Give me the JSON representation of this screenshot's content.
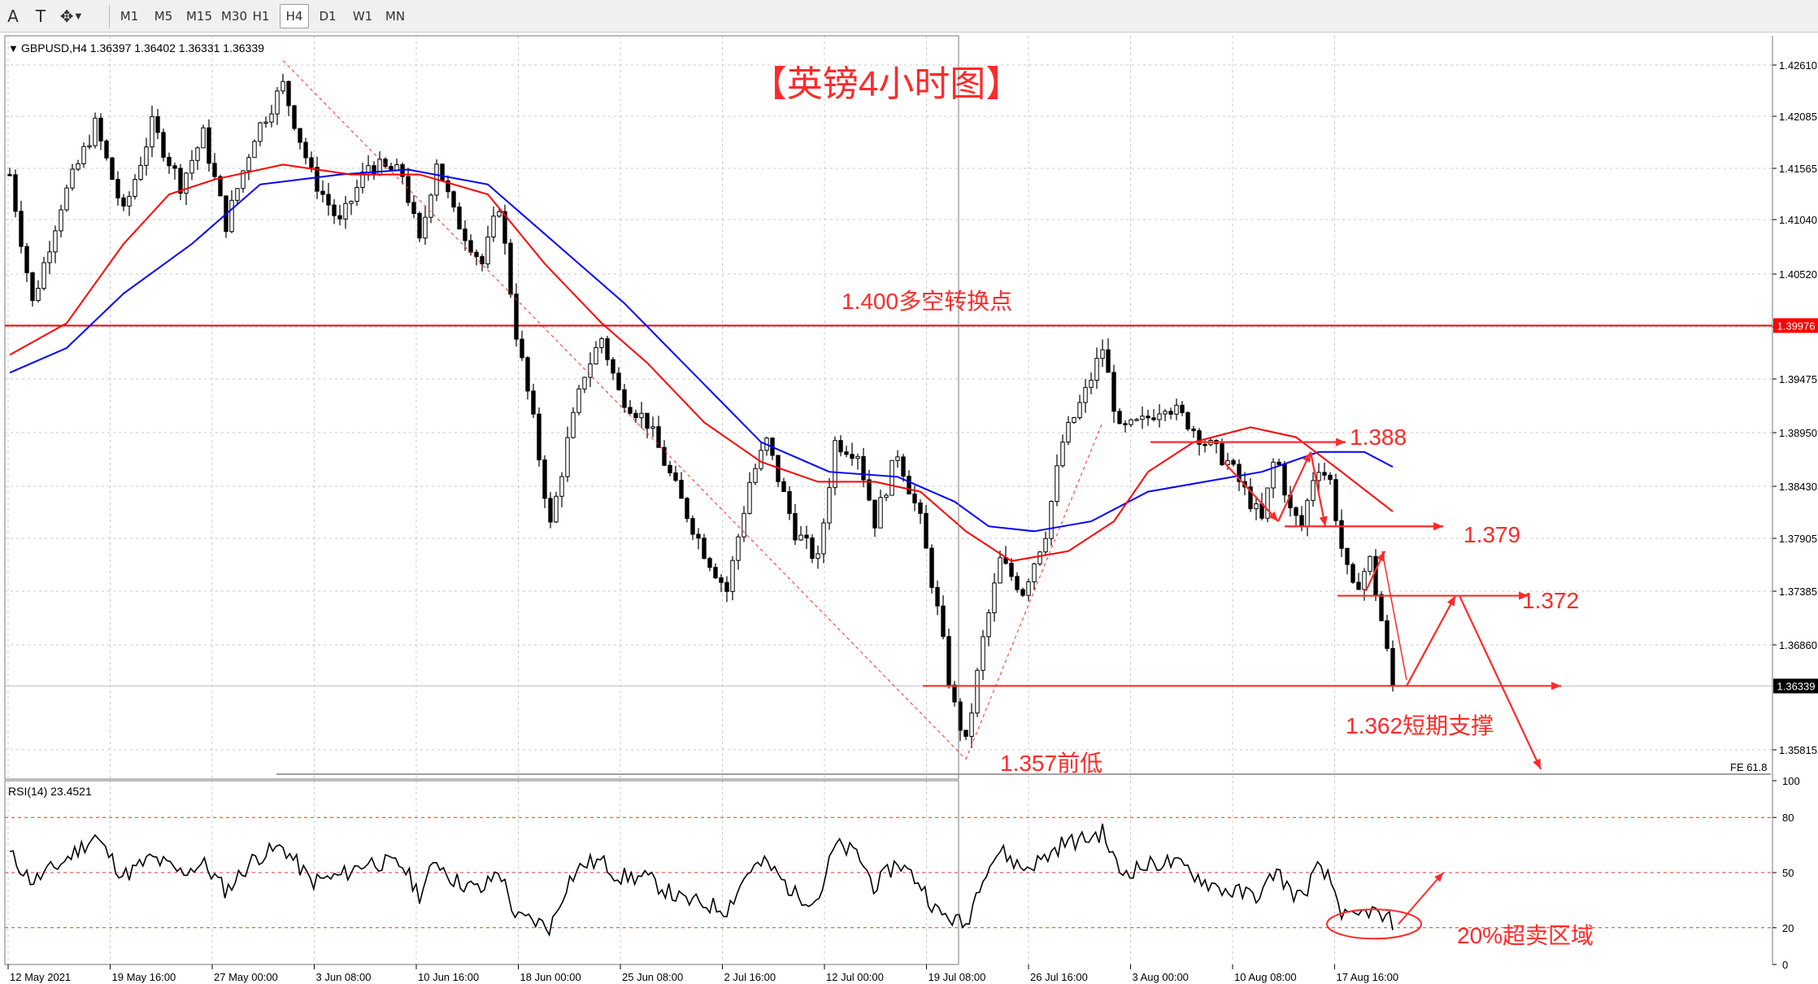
{
  "toolbar": {
    "tools": [
      {
        "name": "text-tool",
        "glyph": "A"
      },
      {
        "name": "text-label-tool",
        "glyph": "T"
      },
      {
        "name": "arrows-tool",
        "glyph": "✥"
      }
    ],
    "timeframes": [
      "M1",
      "M5",
      "M15",
      "M30",
      "H1",
      "H4",
      "D1",
      "W1",
      "MN"
    ],
    "active_timeframe": "H4"
  },
  "colors": {
    "candle": "#000000",
    "ma_fast": "#ff0000",
    "ma_slow": "#0000ff",
    "annotation": "#ff2a2a",
    "grid": "#c8c8c8",
    "rsi_level": "#e03030",
    "price_tag_current": "#000000",
    "price_tag_level": "#ff0000"
  },
  "main_chart": {
    "header": "GBPUSD,H4  1.36397 1.36402 1.36331 1.36339",
    "title": "【英镑4小时图】",
    "price_axis_labels": [
      "1.42610",
      "1.42085",
      "1.41565",
      "1.41040",
      "1.40520",
      "1.39950",
      "1.39475",
      "1.38950",
      "1.38430",
      "1.37905",
      "1.37385",
      "1.36860",
      "1.35815"
    ],
    "current_price_tag": "1.36339",
    "level_price_tag": "1.39976",
    "fe_label": "FE 61.8",
    "annotations": {
      "pivot_1400": "1.400多空转换点",
      "level_1388": "1.388",
      "level_1379": "1.379",
      "level_1372": "1.372",
      "support_1362": "1.362短期支撑",
      "prior_low_1357": "1.357前低"
    }
  },
  "rsi_panel": {
    "header": "RSI(14) 23.4521",
    "axis_labels": [
      "100",
      "80",
      "50",
      "20",
      "0"
    ],
    "annotation": "20%超卖区域"
  },
  "time_axis_labels": [
    "12 May 2021",
    "19 May 16:00",
    "27 May 00:00",
    "3 Jun 08:00",
    "10 Jun 16:00",
    "18 Jun 00:00",
    "25 Jun 08:00",
    "2 Jul 16:00",
    "12 Jul 00:00",
    "19 Jul 08:00",
    "26 Jul 16:00",
    "3 Aug 00:00",
    "10 Aug 08:00",
    "17 Aug 16:00"
  ],
  "chart_data": {
    "type": "candlestick",
    "symbol": "GBPUSD",
    "timeframe": "H4",
    "ylim": [
      1.354,
      1.429
    ],
    "last_close": 1.36339,
    "horizontal_levels": [
      1.39976,
      1.362
    ],
    "anchors": [
      {
        "x": 0,
        "price": 1.415
      },
      {
        "x": 20,
        "price": 1.402
      },
      {
        "x": 45,
        "price": 1.412
      },
      {
        "x": 75,
        "price": 1.42
      },
      {
        "x": 100,
        "price": 1.411
      },
      {
        "x": 125,
        "price": 1.42
      },
      {
        "x": 150,
        "price": 1.414
      },
      {
        "x": 170,
        "price": 1.419
      },
      {
        "x": 190,
        "price": 1.41
      },
      {
        "x": 215,
        "price": 1.419
      },
      {
        "x": 240,
        "price": 1.424
      },
      {
        "x": 265,
        "price": 1.415
      },
      {
        "x": 290,
        "price": 1.41
      },
      {
        "x": 315,
        "price": 1.416
      },
      {
        "x": 345,
        "price": 1.415
      },
      {
        "x": 360,
        "price": 1.408
      },
      {
        "x": 375,
        "price": 1.4165
      },
      {
        "x": 390,
        "price": 1.411
      },
      {
        "x": 415,
        "price": 1.406
      },
      {
        "x": 430,
        "price": 1.412
      },
      {
        "x": 445,
        "price": 1.399
      },
      {
        "x": 460,
        "price": 1.39
      },
      {
        "x": 475,
        "price": 1.3795
      },
      {
        "x": 490,
        "price": 1.388
      },
      {
        "x": 505,
        "price": 1.395
      },
      {
        "x": 520,
        "price": 1.3985
      },
      {
        "x": 535,
        "price": 1.393
      },
      {
        "x": 560,
        "price": 1.39
      },
      {
        "x": 590,
        "price": 1.382
      },
      {
        "x": 610,
        "price": 1.377
      },
      {
        "x": 630,
        "price": 1.373
      },
      {
        "x": 650,
        "price": 1.384
      },
      {
        "x": 665,
        "price": 1.388
      },
      {
        "x": 690,
        "price": 1.379
      },
      {
        "x": 710,
        "price": 1.376
      },
      {
        "x": 725,
        "price": 1.388
      },
      {
        "x": 745,
        "price": 1.387
      },
      {
        "x": 760,
        "price": 1.38
      },
      {
        "x": 780,
        "price": 1.387
      },
      {
        "x": 800,
        "price": 1.38
      },
      {
        "x": 815,
        "price": 1.371
      },
      {
        "x": 828,
        "price": 1.362
      },
      {
        "x": 840,
        "price": 1.3575
      },
      {
        "x": 855,
        "price": 1.368
      },
      {
        "x": 870,
        "price": 1.376
      },
      {
        "x": 890,
        "price": 1.373
      },
      {
        "x": 910,
        "price": 1.379
      },
      {
        "x": 925,
        "price": 1.388
      },
      {
        "x": 945,
        "price": 1.393
      },
      {
        "x": 960,
        "price": 1.3975
      },
      {
        "x": 975,
        "price": 1.389
      },
      {
        "x": 995,
        "price": 1.39
      },
      {
        "x": 1015,
        "price": 1.392
      },
      {
        "x": 1035,
        "price": 1.39
      },
      {
        "x": 1050,
        "price": 1.388
      },
      {
        "x": 1070,
        "price": 1.386
      },
      {
        "x": 1090,
        "price": 1.382
      },
      {
        "x": 1100,
        "price": 1.38
      },
      {
        "x": 1112,
        "price": 1.387
      },
      {
        "x": 1125,
        "price": 1.381
      },
      {
        "x": 1135,
        "price": 1.3795
      },
      {
        "x": 1148,
        "price": 1.386
      },
      {
        "x": 1160,
        "price": 1.384
      },
      {
        "x": 1172,
        "price": 1.376
      },
      {
        "x": 1180,
        "price": 1.373
      },
      {
        "x": 1195,
        "price": 1.376
      },
      {
        "x": 1205,
        "price": 1.37
      },
      {
        "x": 1215,
        "price": 1.3634
      }
    ],
    "ma_fast": [
      {
        "x": 0,
        "price": 1.3968
      },
      {
        "x": 50,
        "price": 1.4
      },
      {
        "x": 100,
        "price": 1.408
      },
      {
        "x": 140,
        "price": 1.413
      },
      {
        "x": 180,
        "price": 1.4145
      },
      {
        "x": 240,
        "price": 1.416
      },
      {
        "x": 300,
        "price": 1.415
      },
      {
        "x": 360,
        "price": 1.415
      },
      {
        "x": 420,
        "price": 1.413
      },
      {
        "x": 470,
        "price": 1.406
      },
      {
        "x": 520,
        "price": 1.4
      },
      {
        "x": 560,
        "price": 1.396
      },
      {
        "x": 610,
        "price": 1.39
      },
      {
        "x": 660,
        "price": 1.386
      },
      {
        "x": 710,
        "price": 1.384
      },
      {
        "x": 760,
        "price": 1.384
      },
      {
        "x": 800,
        "price": 1.383
      },
      {
        "x": 840,
        "price": 1.379
      },
      {
        "x": 880,
        "price": 1.376
      },
      {
        "x": 930,
        "price": 1.377
      },
      {
        "x": 970,
        "price": 1.38
      },
      {
        "x": 1000,
        "price": 1.385
      },
      {
        "x": 1040,
        "price": 1.388
      },
      {
        "x": 1090,
        "price": 1.3895
      },
      {
        "x": 1130,
        "price": 1.3885
      },
      {
        "x": 1170,
        "price": 1.385
      },
      {
        "x": 1215,
        "price": 1.381
      }
    ],
    "ma_slow": [
      {
        "x": 0,
        "price": 1.395
      },
      {
        "x": 50,
        "price": 1.3975
      },
      {
        "x": 100,
        "price": 1.403
      },
      {
        "x": 160,
        "price": 1.408
      },
      {
        "x": 220,
        "price": 1.414
      },
      {
        "x": 290,
        "price": 1.415
      },
      {
        "x": 350,
        "price": 1.4155
      },
      {
        "x": 420,
        "price": 1.414
      },
      {
        "x": 480,
        "price": 1.408
      },
      {
        "x": 540,
        "price": 1.402
      },
      {
        "x": 600,
        "price": 1.395
      },
      {
        "x": 660,
        "price": 1.388
      },
      {
        "x": 720,
        "price": 1.385
      },
      {
        "x": 780,
        "price": 1.3845
      },
      {
        "x": 830,
        "price": 1.382
      },
      {
        "x": 860,
        "price": 1.3795
      },
      {
        "x": 900,
        "price": 1.379
      },
      {
        "x": 950,
        "price": 1.38
      },
      {
        "x": 1000,
        "price": 1.383
      },
      {
        "x": 1050,
        "price": 1.384
      },
      {
        "x": 1100,
        "price": 1.385
      },
      {
        "x": 1150,
        "price": 1.387
      },
      {
        "x": 1190,
        "price": 1.387
      },
      {
        "x": 1215,
        "price": 1.3855
      }
    ],
    "rsi": {
      "ylim": [
        0,
        100
      ],
      "levels": [
        80,
        50,
        20
      ],
      "last": 23.4521,
      "anchors": [
        {
          "x": 0,
          "value": 60
        },
        {
          "x": 20,
          "value": 45
        },
        {
          "x": 45,
          "value": 55
        },
        {
          "x": 75,
          "value": 70
        },
        {
          "x": 100,
          "value": 48
        },
        {
          "x": 125,
          "value": 58
        },
        {
          "x": 150,
          "value": 50
        },
        {
          "x": 170,
          "value": 55
        },
        {
          "x": 190,
          "value": 40
        },
        {
          "x": 215,
          "value": 58
        },
        {
          "x": 240,
          "value": 64
        },
        {
          "x": 265,
          "value": 45
        },
        {
          "x": 290,
          "value": 48
        },
        {
          "x": 315,
          "value": 56
        },
        {
          "x": 345,
          "value": 54
        },
        {
          "x": 360,
          "value": 38
        },
        {
          "x": 375,
          "value": 57
        },
        {
          "x": 390,
          "value": 46
        },
        {
          "x": 415,
          "value": 40
        },
        {
          "x": 430,
          "value": 52
        },
        {
          "x": 445,
          "value": 25
        },
        {
          "x": 460,
          "value": 24
        },
        {
          "x": 475,
          "value": 20
        },
        {
          "x": 490,
          "value": 45
        },
        {
          "x": 505,
          "value": 55
        },
        {
          "x": 520,
          "value": 56
        },
        {
          "x": 535,
          "value": 48
        },
        {
          "x": 560,
          "value": 47
        },
        {
          "x": 590,
          "value": 35
        },
        {
          "x": 610,
          "value": 33
        },
        {
          "x": 630,
          "value": 30
        },
        {
          "x": 650,
          "value": 52
        },
        {
          "x": 665,
          "value": 55
        },
        {
          "x": 690,
          "value": 38
        },
        {
          "x": 710,
          "value": 35
        },
        {
          "x": 725,
          "value": 65
        },
        {
          "x": 745,
          "value": 60
        },
        {
          "x": 760,
          "value": 42
        },
        {
          "x": 780,
          "value": 56
        },
        {
          "x": 800,
          "value": 44
        },
        {
          "x": 815,
          "value": 28
        },
        {
          "x": 828,
          "value": 25
        },
        {
          "x": 840,
          "value": 21
        },
        {
          "x": 855,
          "value": 50
        },
        {
          "x": 870,
          "value": 62
        },
        {
          "x": 890,
          "value": 52
        },
        {
          "x": 910,
          "value": 58
        },
        {
          "x": 925,
          "value": 66
        },
        {
          "x": 945,
          "value": 68
        },
        {
          "x": 960,
          "value": 72
        },
        {
          "x": 975,
          "value": 50
        },
        {
          "x": 995,
          "value": 53
        },
        {
          "x": 1015,
          "value": 56
        },
        {
          "x": 1035,
          "value": 52
        },
        {
          "x": 1050,
          "value": 45
        },
        {
          "x": 1070,
          "value": 40
        },
        {
          "x": 1090,
          "value": 38
        },
        {
          "x": 1100,
          "value": 38
        },
        {
          "x": 1112,
          "value": 52
        },
        {
          "x": 1125,
          "value": 40
        },
        {
          "x": 1135,
          "value": 36
        },
        {
          "x": 1148,
          "value": 52
        },
        {
          "x": 1160,
          "value": 46
        },
        {
          "x": 1172,
          "value": 26
        },
        {
          "x": 1180,
          "value": 24
        },
        {
          "x": 1195,
          "value": 30
        },
        {
          "x": 1205,
          "value": 25
        },
        {
          "x": 1215,
          "value": 23.45
        }
      ]
    }
  }
}
